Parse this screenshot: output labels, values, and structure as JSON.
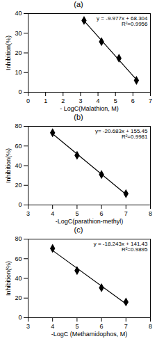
{
  "chart_data": [
    {
      "type": "scatter",
      "title": "(a)",
      "x_label": "- LogC(Malathion, M)",
      "y_label": "Inhibition(%)",
      "x": [
        3.2,
        4.2,
        5.2,
        6.2
      ],
      "values": [
        36.5,
        25.7,
        17.3,
        6.0
      ],
      "xlim": [
        0,
        7
      ],
      "xticks": [
        0,
        1,
        2,
        3,
        4,
        5,
        6,
        7
      ],
      "ylim": [
        0,
        40
      ],
      "yticks": [
        0,
        10,
        20,
        30,
        40
      ],
      "color": "#000000",
      "marker": "diamond",
      "grid": false,
      "annotations": [
        "y = -9.977x + 68.304",
        "R²=0.9956"
      ]
    },
    {
      "type": "scatter",
      "title": "(b)",
      "x_label": "-LogC(parathion-methyl)",
      "y_label": "Inhibition(%)",
      "x": [
        4,
        5,
        6,
        7
      ],
      "values": [
        73.5,
        50.5,
        31.0,
        11.5
      ],
      "xlim": [
        3,
        8
      ],
      "xticks": [
        3,
        4,
        5,
        6,
        7,
        8
      ],
      "ylim": [
        0,
        80
      ],
      "yticks": [
        0,
        20,
        40,
        60,
        80
      ],
      "color": "#000000",
      "marker": "diamond",
      "grid": false,
      "annotations": [
        "y= -20.683x + 155.45",
        "R²=0.9981"
      ]
    },
    {
      "type": "scatter",
      "title": "(c)",
      "x_label": "-LogC (Methamidophos, M)",
      "y_label": "Inhibition(%)",
      "x": [
        4,
        5,
        6,
        7
      ],
      "values": [
        70.5,
        48.0,
        30.5,
        16.0
      ],
      "xlim": [
        3,
        8
      ],
      "xticks": [
        3,
        4,
        5,
        6,
        7,
        8
      ],
      "ylim": [
        0,
        80
      ],
      "yticks": [
        0,
        20,
        40,
        60,
        80
      ],
      "color": "#000000",
      "marker": "diamond",
      "grid": false,
      "annotations": [
        "y = -18.243x + 141.43",
        "R²=0.9895"
      ]
    }
  ]
}
